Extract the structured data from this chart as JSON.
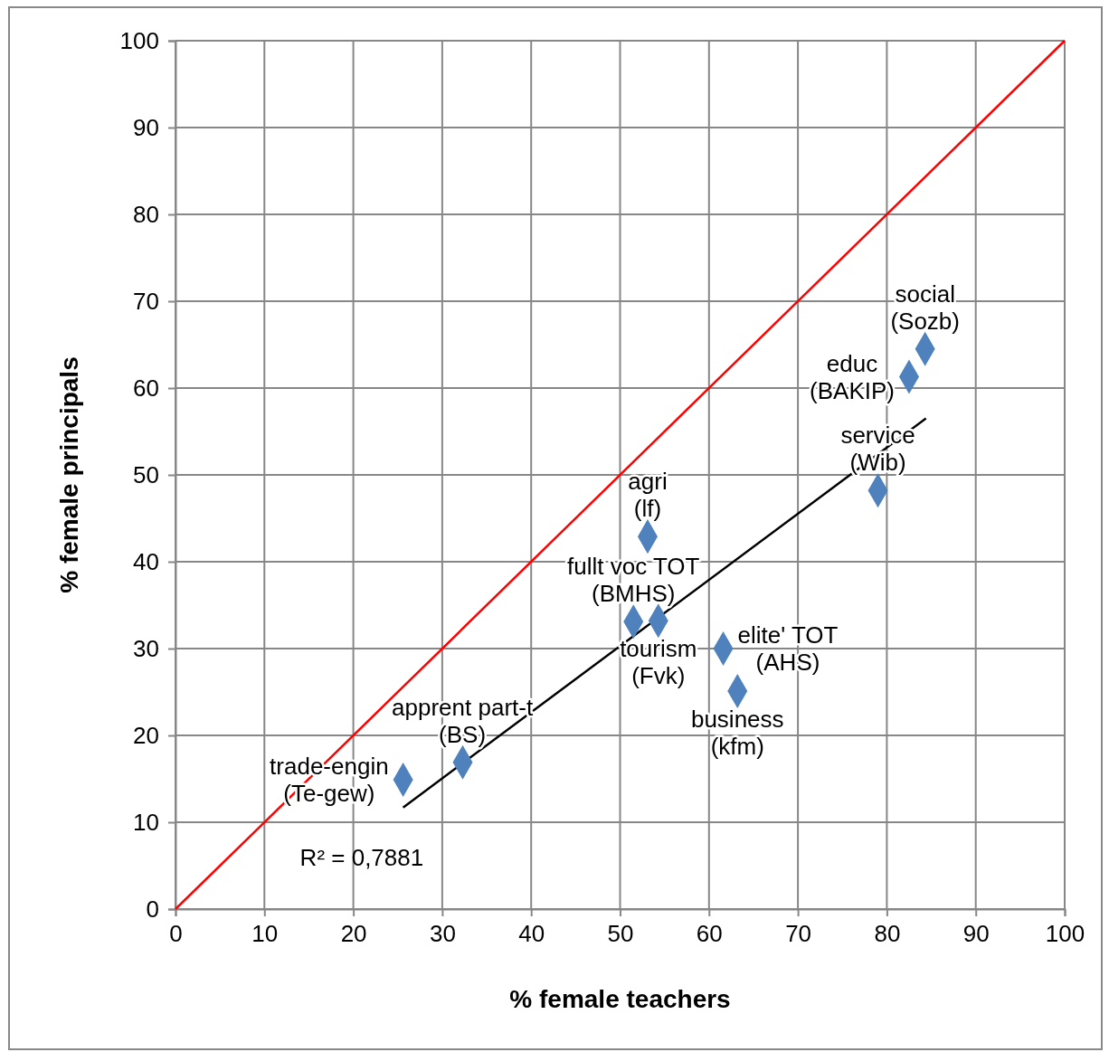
{
  "chart_data": {
    "type": "scatter",
    "xlabel": "% female teachers",
    "ylabel": "% female principals",
    "xlim": [
      0,
      100
    ],
    "xticks": [
      0,
      10,
      20,
      30,
      40,
      50,
      60,
      70,
      80,
      90,
      100
    ],
    "ylim": [
      0,
      100
    ],
    "yticks": [
      0,
      10,
      20,
      30,
      40,
      50,
      60,
      70,
      80,
      90,
      100
    ],
    "grid": true,
    "marker": "diamond",
    "series": [
      {
        "color": "#4f81bd",
        "x": [
          25.6,
          32.3,
          51.5,
          54.3,
          53.1,
          61.6,
          63.2,
          79.0,
          82.5,
          84.3
        ],
        "values": [
          14.9,
          16.9,
          33.1,
          33.2,
          42.9,
          30.0,
          25.1,
          48.2,
          61.3,
          64.5
        ]
      },
      {
        "type": "line",
        "color": "#ff0000",
        "marker": "none",
        "x": [
          0,
          100
        ],
        "values": [
          0,
          100
        ]
      },
      {
        "type": "line",
        "color": "#000000",
        "marker": "none",
        "x": [
          25.6,
          84.4
        ],
        "values": [
          11.7,
          56.5
        ]
      }
    ],
    "annotations": [
      {
        "text": "trade-engin (Te-gew)",
        "x": 25.6,
        "y": 14.9
      },
      {
        "text": "apprent part-t (BS)",
        "x": 32.3,
        "y": 16.9
      },
      {
        "text": "fullt voc TOT (BMHS)",
        "x": 51.5,
        "y": 33.1
      },
      {
        "text": "tourism (Fvk)",
        "x": 54.3,
        "y": 33.2
      },
      {
        "text": "agri (lf)",
        "x": 53.1,
        "y": 42.9
      },
      {
        "text": "elite' TOT (AHS)",
        "x": 61.6,
        "y": 30.0
      },
      {
        "text": "business (kfm)",
        "x": 63.2,
        "y": 25.1
      },
      {
        "text": "service (Wib)",
        "x": 79.0,
        "y": 48.2
      },
      {
        "text": "educ (BAKIP)",
        "x": 82.5,
        "y": 61.3
      },
      {
        "text": "social (Sozb)",
        "x": 84.3,
        "y": 64.5
      },
      "R² = 0,7881"
    ]
  }
}
